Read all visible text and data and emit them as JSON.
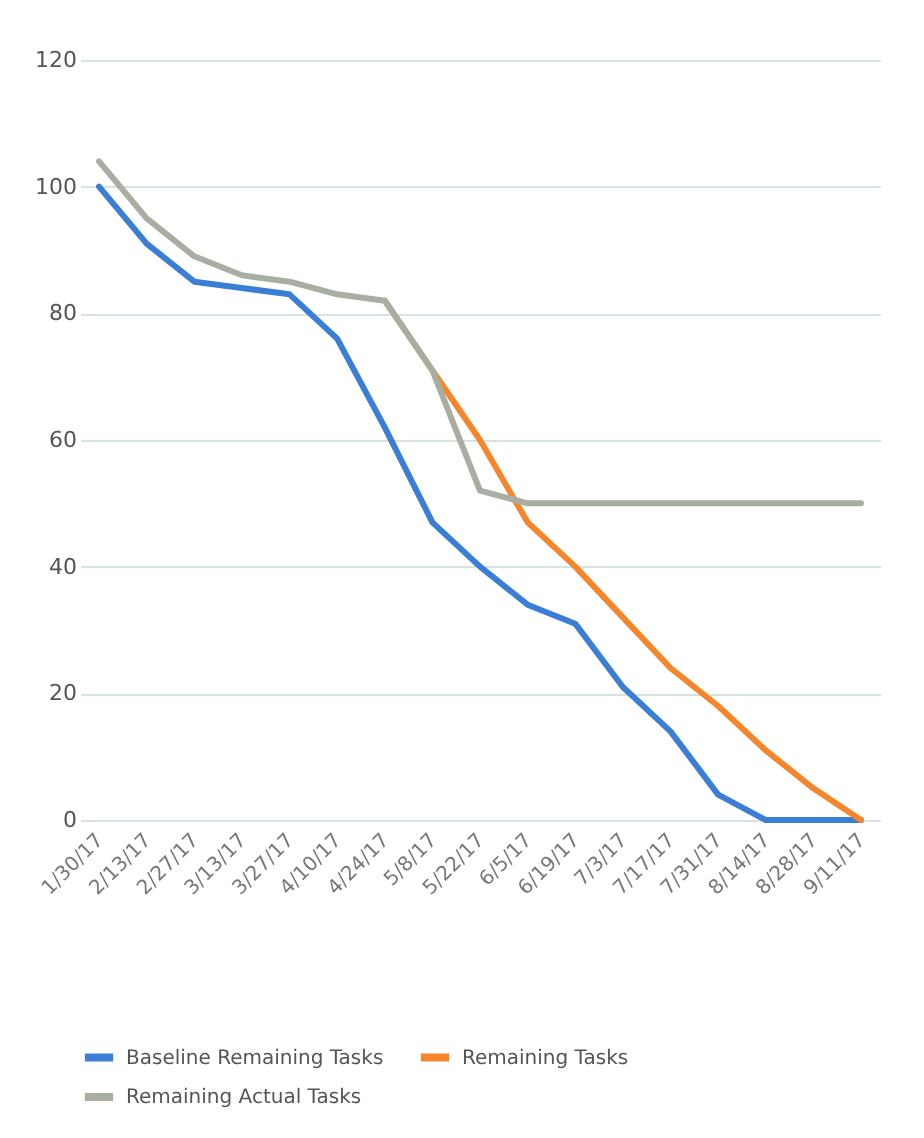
{
  "chart_data": {
    "type": "line",
    "categories": [
      "1/30/17",
      "2/13/17",
      "2/27/17",
      "3/13/17",
      "3/27/17",
      "4/10/17",
      "4/24/17",
      "5/8/17",
      "5/22/17",
      "6/5/17",
      "6/19/17",
      "7/3/17",
      "7/17/17",
      "7/31/17",
      "8/14/17",
      "8/28/17",
      "9/11/17"
    ],
    "series": [
      {
        "name": "Baseline Remaining Tasks",
        "color": "#3a7fd5",
        "values": [
          100,
          91,
          85,
          84,
          83,
          76,
          62,
          47,
          40,
          34,
          31,
          21,
          14,
          4,
          0,
          0,
          0
        ]
      },
      {
        "name": "Remaining Tasks",
        "color": "#f5862b",
        "values": [
          null,
          null,
          null,
          null,
          null,
          null,
          82,
          71,
          60,
          47,
          40,
          32,
          24,
          18,
          11,
          5,
          0
        ]
      },
      {
        "name": "Remaining Actual Tasks",
        "color": "#a9aea2",
        "values": [
          104,
          95,
          89,
          86,
          85,
          83,
          82,
          71,
          52,
          50,
          50,
          50,
          50,
          50,
          50,
          50,
          50
        ]
      }
    ],
    "ylim": [
      0,
      120
    ],
    "yticks": [
      0,
      20,
      40,
      60,
      80,
      100,
      120
    ],
    "grid": "y",
    "legend": "bottom",
    "marker": "none",
    "line_style": "solid"
  }
}
